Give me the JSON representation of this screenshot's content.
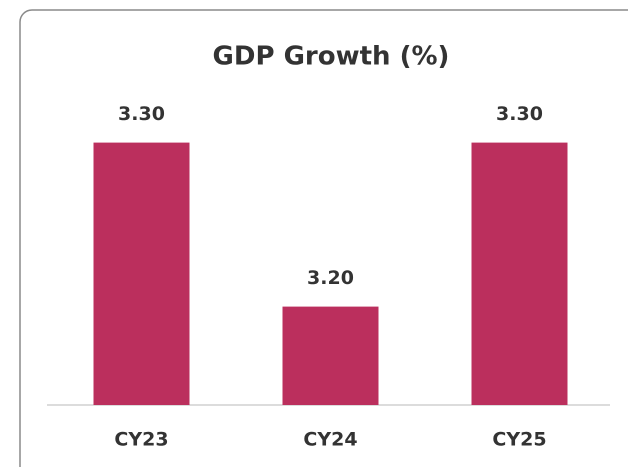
{
  "chart_data": {
    "type": "bar",
    "title": "GDP Growth (%)",
    "categories": [
      "CY23",
      "CY24",
      "CY25"
    ],
    "values": [
      3.3,
      3.2,
      3.3
    ],
    "value_labels": [
      "3.30",
      "3.20",
      "3.30"
    ],
    "color": "#bb2f5d",
    "ylim": [
      3.14,
      3.34
    ]
  }
}
